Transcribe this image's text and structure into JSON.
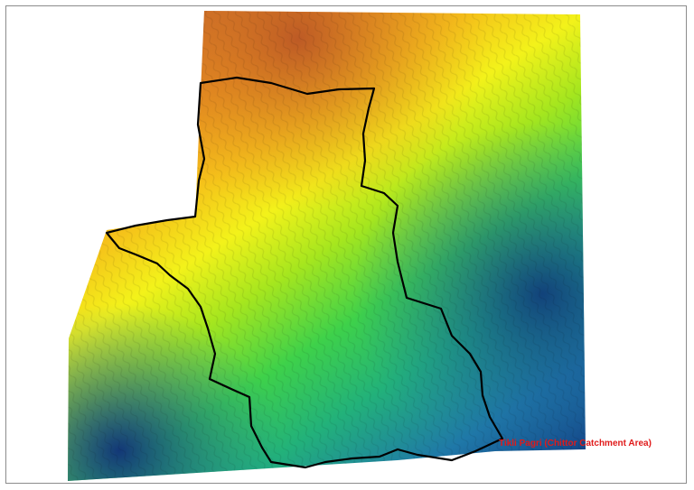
{
  "map": {
    "label": "Tikli Pagri (Chittor Catchment Area)",
    "label_color": "#e01a1a",
    "boundary_color": "#000000",
    "frame_color": "#8c8c8c",
    "elevation_ramp": [
      "#0f2f7a",
      "#1f78a8",
      "#22b17a",
      "#3ed14a",
      "#a6e61e",
      "#f3f21a",
      "#f5c21a",
      "#e8901f",
      "#c4622d"
    ]
  }
}
